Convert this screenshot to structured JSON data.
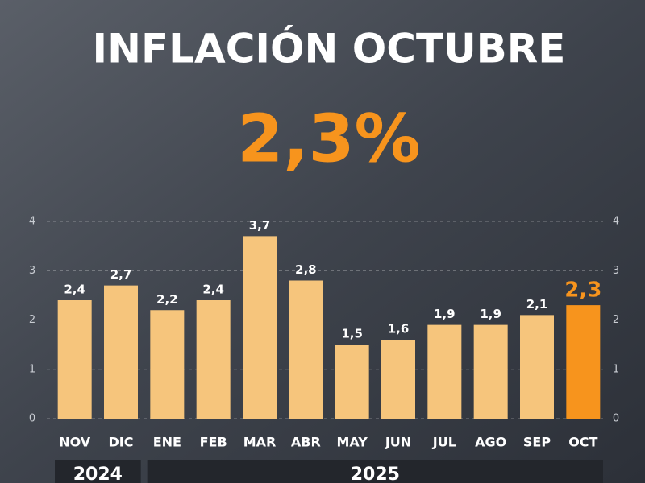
{
  "chart_data": {
    "type": "bar",
    "title": "INFLACIÓN OCTUBRE",
    "headline": "2,3%",
    "categories": [
      "NOV",
      "DIC",
      "ENE",
      "FEB",
      "MAR",
      "ABR",
      "MAY",
      "JUN",
      "JUL",
      "AGO",
      "SEP",
      "OCT"
    ],
    "values": [
      2.4,
      2.7,
      2.2,
      2.4,
      3.7,
      2.8,
      1.5,
      1.6,
      1.9,
      1.9,
      2.1,
      2.3
    ],
    "value_labels": [
      "2,4",
      "2,7",
      "2,2",
      "2,4",
      "3,7",
      "2,8",
      "1,5",
      "1,6",
      "1,9",
      "1,9",
      "2,1",
      "2,3"
    ],
    "colors": [
      "#f6c57c",
      "#f6c57c",
      "#f6c57c",
      "#f6c57c",
      "#f6c57c",
      "#f6c57c",
      "#f6c57c",
      "#f6c57c",
      "#f6c57c",
      "#f6c57c",
      "#f6c57c",
      "#f7941d"
    ],
    "groups": [
      {
        "label": "2024",
        "count": 2
      },
      {
        "label": "2025",
        "count": 10
      }
    ],
    "ylim": [
      0,
      4
    ],
    "yticks": [
      0,
      1,
      2,
      3,
      4
    ],
    "y2lim": [
      0,
      4
    ],
    "y2ticks": [
      0,
      1,
      2,
      3,
      4
    ],
    "grid": true
  }
}
